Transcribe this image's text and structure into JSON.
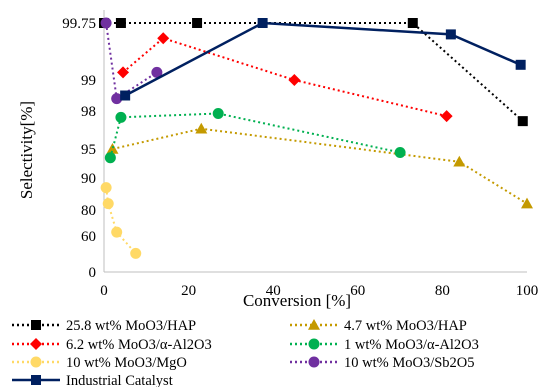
{
  "chart_data": {
    "type": "scatter",
    "xlabel": "Conversion [%]",
    "ylabel": "Selectivity[%]",
    "xlim": [
      0,
      100
    ],
    "x_ticks": [
      0,
      20,
      40,
      60,
      80,
      100
    ],
    "y_scale": "nonlinear (compressed toward 100)",
    "y_ticks": [
      0,
      60,
      80,
      90,
      95,
      98,
      99,
      99.75
    ],
    "grid": false,
    "legend_position": "bottom",
    "series": [
      {
        "name": "25.8 wt% MoO3/HAP",
        "color": "#000000",
        "marker": "square",
        "line": "dotted",
        "points": [
          [
            0,
            99.75
          ],
          [
            4,
            99.75
          ],
          [
            22,
            99.75
          ],
          [
            73,
            99.75
          ],
          [
            99,
            97.2
          ]
        ]
      },
      {
        "name": "4.7 wt% MoO3/HAP",
        "color": "#c49a00",
        "marker": "triangle",
        "line": "dotted",
        "points": [
          [
            2,
            95
          ],
          [
            23,
            96.6
          ],
          [
            84,
            92.8
          ],
          [
            100,
            82
          ]
        ]
      },
      {
        "name": "6.2 wt% MoO3/α-Al2O3",
        "color": "#ff0000",
        "marker": "diamond",
        "line": "dotted",
        "points": [
          [
            4.5,
            99.1
          ],
          [
            14,
            99.55
          ],
          [
            45,
            99.0
          ],
          [
            81,
            97.6
          ]
        ]
      },
      {
        "name": "1 wt% MoO3/α-Al2O3",
        "color": "#00b050",
        "marker": "circle",
        "line": "dotted",
        "points": [
          [
            1.5,
            93.5
          ],
          [
            4,
            97.5
          ],
          [
            27,
            97.8
          ],
          [
            70,
            94.4
          ]
        ]
      },
      {
        "name": "10 wt% MoO3/MgO",
        "color": "#ffd966",
        "marker": "circle",
        "line": "dotted",
        "points": [
          [
            0.5,
            87
          ],
          [
            1,
            82
          ],
          [
            3,
            63
          ],
          [
            7.5,
            31
          ]
        ]
      },
      {
        "name": "10 wt% MoO3/Sb2O5",
        "color": "#7030a0",
        "marker": "circle",
        "line": "dotted",
        "points": [
          [
            0.5,
            99.75
          ],
          [
            3,
            98.4
          ],
          [
            12.5,
            99.1
          ]
        ]
      },
      {
        "name": "Industrial Catalyst",
        "color": "#002060",
        "marker": "square",
        "line": "solid",
        "points": [
          [
            5,
            98.5
          ],
          [
            37.5,
            99.75
          ],
          [
            82,
            99.6
          ],
          [
            98.5,
            99.2
          ]
        ]
      }
    ]
  }
}
